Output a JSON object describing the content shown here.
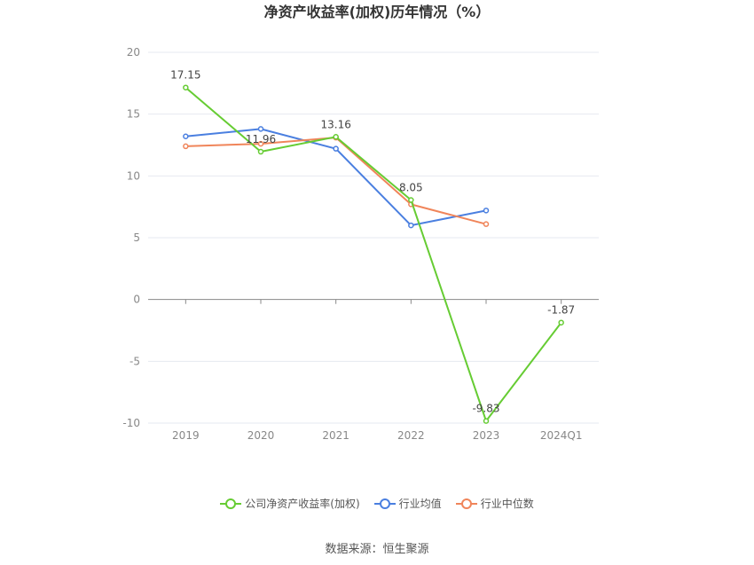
{
  "chart_data": {
    "type": "line",
    "title": "净资产收益率(加权)历年情况（%）",
    "xlabel": "",
    "ylabel": "",
    "categories": [
      "2019",
      "2020",
      "2021",
      "2022",
      "2023",
      "2024Q1"
    ],
    "ylim": [
      -10,
      20
    ],
    "yticks": [
      -10,
      -5,
      0,
      5,
      10,
      15,
      20
    ],
    "grid": true,
    "legend_position": "bottom",
    "series": [
      {
        "name": "公司净资产收益率(加权)",
        "color": "#66cc33",
        "values": [
          17.15,
          11.96,
          13.16,
          8.05,
          -9.83,
          -1.87
        ],
        "labels": [
          "17.15",
          "11.96",
          "13.16",
          "8.05",
          "-9.83",
          "-1.87"
        ]
      },
      {
        "name": "行业均值",
        "color": "#4a7fe0",
        "values": [
          13.2,
          13.8,
          12.2,
          6.0,
          7.2,
          null
        ]
      },
      {
        "name": "行业中位数",
        "color": "#f0855a",
        "values": [
          12.4,
          12.6,
          13.1,
          7.7,
          6.1,
          null
        ]
      }
    ]
  },
  "source": "数据来源：恒生聚源"
}
